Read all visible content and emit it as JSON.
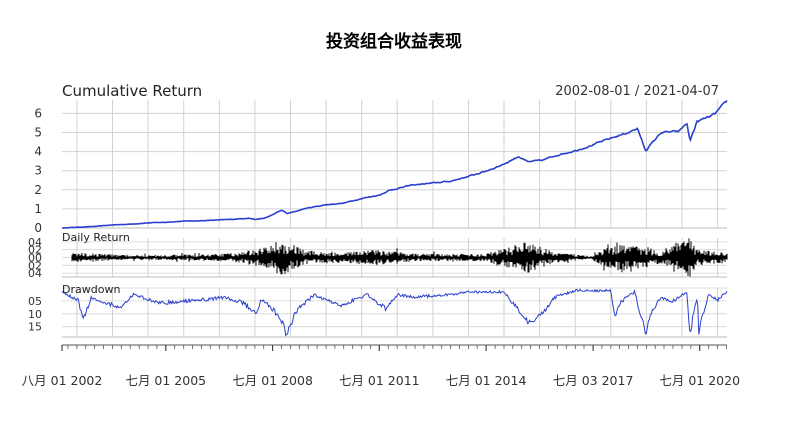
{
  "figure": {
    "title": "投资组合收益表现",
    "date_range": "2002-08-01 / 2021-04-07"
  },
  "chart_data": {
    "type": "line",
    "x_tick_labels": [
      "八月 01 2002",
      "七月 01 2005",
      "七月 01 2008",
      "七月 01 2011",
      "七月 01 2014",
      "七月 03 2017",
      "七月 01 2020"
    ],
    "x_range": [
      "2002-08-01",
      "2021-04-07"
    ],
    "panels": [
      {
        "title": "Cumulative Return",
        "y_ticks": [
          "0",
          "1",
          "2",
          "3",
          "4",
          "5",
          "6"
        ],
        "ylim": [
          0,
          6.7
        ],
        "grid": true,
        "color": "#2a3fcc",
        "series": [
          {
            "x": [
              "2002-08-01",
              "2003-01-01",
              "2003-07-01",
              "2004-01-01",
              "2004-07-01",
              "2005-01-01",
              "2005-07-01",
              "2006-01-01",
              "2006-07-01",
              "2007-01-01",
              "2007-07-01",
              "2007-11-01",
              "2008-01-01",
              "2008-04-01",
              "2008-06-01",
              "2008-10-01",
              "2008-12-01",
              "2009-06-01",
              "2010-01-01",
              "2010-07-01",
              "2011-01-01",
              "2011-07-01",
              "2011-10-01",
              "2012-06-01",
              "2013-01-01",
              "2013-07-01",
              "2014-01-01",
              "2014-07-01",
              "2015-01-01",
              "2015-06-01",
              "2015-09-01",
              "2016-02-01",
              "2016-07-01",
              "2017-01-01",
              "2017-07-01",
              "2018-01-01",
              "2018-06-01",
              "2018-10-01",
              "2018-12-24",
              "2019-06-01",
              "2019-12-01",
              "2020-02-20",
              "2020-03-23",
              "2020-06-01",
              "2020-09-01",
              "2020-12-01",
              "2021-02-01",
              "2021-04-07"
            ],
            "values": [
              0,
              0.04,
              0.08,
              0.16,
              0.2,
              0.27,
              0.3,
              0.36,
              0.38,
              0.42,
              0.47,
              0.52,
              0.45,
              0.5,
              0.62,
              0.93,
              0.75,
              1.02,
              1.22,
              1.3,
              1.55,
              1.72,
              1.95,
              2.25,
              2.35,
              2.45,
              2.7,
              2.98,
              3.35,
              3.75,
              3.45,
              3.55,
              3.82,
              4.05,
              4.35,
              4.7,
              4.95,
              5.2,
              4.05,
              5.0,
              5.05,
              5.5,
              4.55,
              5.55,
              5.75,
              5.95,
              6.3,
              6.65
            ]
          }
        ]
      },
      {
        "title": "Daily Return",
        "y_ticks": [
          "04",
          "02",
          "00",
          "02",
          "04"
        ],
        "ylim": [
          -0.05,
          0.05
        ],
        "grid": true,
        "color": "#000000",
        "volatility": {
          "x": [
            "2002-08-01",
            "2003-06-01",
            "2004-06-01",
            "2005-06-01",
            "2006-06-01",
            "2007-06-01",
            "2008-01-01",
            "2008-10-01",
            "2009-06-01",
            "2010-05-01",
            "2011-08-01",
            "2012-06-01",
            "2013-06-01",
            "2014-06-01",
            "2015-08-24",
            "2016-06-01",
            "2017-06-01",
            "2018-02-05",
            "2018-12-24",
            "2019-06-01",
            "2020-03-16",
            "2020-06-01",
            "2021-04-07"
          ],
          "abs_return": [
            0.012,
            0.01,
            0.006,
            0.006,
            0.007,
            0.01,
            0.018,
            0.04,
            0.016,
            0.012,
            0.018,
            0.009,
            0.008,
            0.008,
            0.035,
            0.012,
            0.004,
            0.03,
            0.026,
            0.012,
            0.045,
            0.018,
            0.012
          ]
        }
      },
      {
        "title": "Drawdown",
        "y_ticks": [
          "05",
          "10",
          "15"
        ],
        "ylim": [
          -0.19,
          0
        ],
        "grid": true,
        "color": "#2a3fcc",
        "series": [
          {
            "x": [
              "2002-08-01",
              "2003-01-15",
              "2003-03-01",
              "2003-06-01",
              "2004-04-01",
              "2004-08-01",
              "2005-05-01",
              "2006-06-01",
              "2007-03-01",
              "2007-09-01",
              "2008-01-15",
              "2008-03-01",
              "2008-06-01",
              "2008-10-15",
              "2008-11-20",
              "2009-03-01",
              "2009-09-01",
              "2010-06-01",
              "2011-03-01",
              "2011-09-01",
              "2012-01-01",
              "2012-06-01",
              "2013-06-01",
              "2014-01-01",
              "2015-01-01",
              "2015-09-01",
              "2016-02-01",
              "2016-06-01",
              "2017-01-01",
              "2018-01-01",
              "2018-02-09",
              "2018-04-01",
              "2018-09-01",
              "2018-12-24",
              "2019-03-01",
              "2019-06-01",
              "2019-09-01",
              "2020-02-20",
              "2020-03-23",
              "2020-05-01",
              "2020-06-10",
              "2020-06-15",
              "2020-10-01",
              "2021-01-01",
              "2021-04-07"
            ],
            "values": [
              -0.01,
              -0.04,
              -0.11,
              -0.03,
              -0.07,
              -0.02,
              -0.05,
              -0.04,
              -0.03,
              -0.05,
              -0.09,
              -0.04,
              -0.06,
              -0.12,
              -0.165,
              -0.08,
              -0.02,
              -0.06,
              -0.02,
              -0.07,
              -0.02,
              -0.03,
              -0.02,
              -0.01,
              -0.01,
              -0.12,
              -0.09,
              -0.03,
              -0.005,
              -0.005,
              -0.1,
              -0.05,
              -0.01,
              -0.16,
              -0.08,
              -0.03,
              -0.05,
              -0.01,
              -0.175,
              -0.08,
              -0.03,
              -0.16,
              -0.02,
              -0.04,
              -0.01
            ]
          }
        ]
      }
    ]
  }
}
